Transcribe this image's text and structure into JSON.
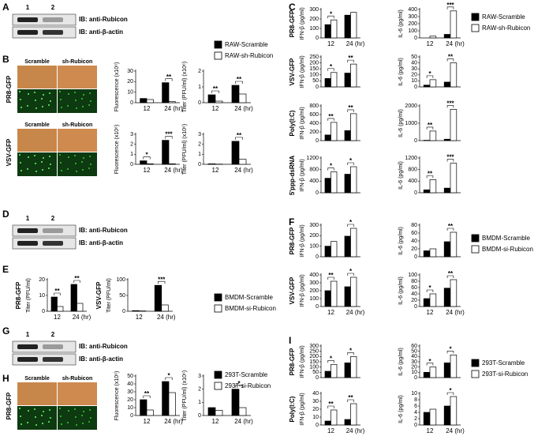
{
  "panel_labels": [
    "A",
    "B",
    "C",
    "D",
    "E",
    "F",
    "G",
    "H",
    "I"
  ],
  "blots": [
    {
      "lanes": [
        "1",
        "2"
      ],
      "rows": [
        "IB: anti-Rubicon",
        "IB: anti-β-actin"
      ]
    },
    {
      "lanes": [
        "1",
        "2"
      ],
      "rows": [
        "IB: anti-Rubicon",
        "IB: anti-β-actin"
      ]
    },
    {
      "lanes": [
        "1",
        "2"
      ],
      "rows": [
        "IB: anti-Rubicon",
        "IB: anti-β-actin"
      ]
    }
  ],
  "micrographs": [
    {
      "columns": [
        "Scramble",
        "sh-Rubicon"
      ],
      "row": "PR8-GFP"
    },
    {
      "columns": [
        "Scramble",
        "sh-Rubicon"
      ],
      "row": "VSV-GFP"
    },
    {
      "columns": [
        "Scramble",
        "sh-Rubicon"
      ],
      "row": "PR8-GFP"
    }
  ],
  "chart_data": [
    {
      "type": "bar",
      "series": [
        {
          "name": "RAW-Scramble",
          "color": "#000000"
        },
        {
          "name": "RAW-sh-Rubicon",
          "color": "#ffffff"
        }
      ],
      "plots": [
        {
          "ylabel": "Fluorescence (x10⁶)",
          "categories": [
            "12",
            "24 (hr)"
          ],
          "ylim": [
            0,
            30
          ],
          "yticks": [
            0,
            10,
            20,
            30
          ],
          "values": [
            [
              4,
              19
            ],
            [
              3,
              1
            ]
          ],
          "significance": [
            null,
            "**"
          ]
        },
        {
          "ylabel": "Titer (PFU/ml) (x10⁶)",
          "categories": [
            "12",
            "24 (hr)"
          ],
          "ylim": [
            0,
            2
          ],
          "yticks": [
            0,
            1,
            2
          ],
          "values": [
            [
              0.5,
              1.1
            ],
            [
              0.1,
              0.55
            ]
          ],
          "significance": [
            "**",
            "**"
          ]
        },
        {
          "ylabel": "Fluorescence (x10⁶)",
          "categories": [
            "12",
            "24 (hr)"
          ],
          "ylim": [
            0,
            3
          ],
          "yticks": [
            0,
            1,
            2,
            3
          ],
          "values": [
            [
              0.35,
              2.4
            ],
            [
              0.05,
              0.05
            ]
          ],
          "significance": [
            "*",
            "***"
          ]
        },
        {
          "ylabel": "Titer (PFU/ml) (x10⁶)",
          "categories": [
            "12",
            "24 (hr)"
          ],
          "ylim": [
            0,
            3
          ],
          "yticks": [
            0,
            1,
            2,
            3
          ],
          "values": [
            [
              0.05,
              2.3
            ],
            [
              0.02,
              0.5
            ]
          ],
          "significance": [
            null,
            "**"
          ]
        }
      ]
    },
    {
      "type": "bar",
      "series": [
        {
          "name": "RAW-Scramble",
          "color": "#000000"
        },
        {
          "name": "RAW-sh-Rubicon",
          "color": "#ffffff"
        }
      ],
      "plots": [
        {
          "row_label": "PR8-GFP",
          "ylabel": "IFN-β (pg/ml)",
          "categories": [
            "12",
            "24 (hr)"
          ],
          "ylim": [
            0,
            300
          ],
          "yticks": [
            0,
            100,
            200,
            300
          ],
          "values": [
            [
              140,
              240
            ],
            [
              190,
              270
            ]
          ],
          "significance": [
            "*",
            null
          ]
        },
        {
          "ylabel": "IL-6 (pg/ml)",
          "categories": [
            "12",
            "24 (hr)"
          ],
          "ylim": [
            0,
            400
          ],
          "yticks": [
            0,
            100,
            200,
            300,
            400
          ],
          "values": [
            [
              0,
              50
            ],
            [
              25,
              380
            ]
          ],
          "significance": [
            null,
            "***"
          ]
        },
        {
          "row_label": "VSV-GFP",
          "ylabel": "IFN-β (pg/ml)",
          "categories": [
            null,
            null
          ],
          "ylim": [
            0,
            250
          ],
          "yticks": [
            0,
            50,
            100,
            150,
            200,
            250
          ],
          "values": [
            [
              70,
              115
            ],
            [
              120,
              190
            ]
          ],
          "significance": [
            "*",
            "**"
          ]
        },
        {
          "ylabel": "IL-6 (pg/ml)",
          "categories": [
            null,
            null
          ],
          "ylim": [
            0,
            50
          ],
          "yticks": [
            0,
            10,
            20,
            30,
            40,
            50
          ],
          "values": [
            [
              3,
              8
            ],
            [
              12,
              40
            ]
          ],
          "significance": [
            "*",
            "**"
          ]
        },
        {
          "row_label": "Poly(I:C)",
          "ylabel": "IFN-β (pg/ml)",
          "categories": [
            null,
            null
          ],
          "ylim": [
            0,
            800
          ],
          "yticks": [
            0,
            200,
            400,
            600,
            800
          ],
          "values": [
            [
              130,
              230
            ],
            [
              420,
              620
            ]
          ],
          "significance": [
            "**",
            "**"
          ]
        },
        {
          "ylabel": "IL-6 (pg/ml)",
          "categories": [
            null,
            null
          ],
          "ylim": [
            0,
            2000
          ],
          "yticks": [
            0,
            1000,
            2000
          ],
          "values": [
            [
              20,
              80
            ],
            [
              550,
              1800
            ]
          ],
          "significance": [
            "**",
            "***"
          ]
        },
        {
          "row_label": "5'ppp-dsRNA",
          "ylabel": "IFN-β (pg/ml)",
          "categories": [
            null,
            null
          ],
          "ylim": [
            0,
            1200
          ],
          "yticks": [
            0,
            400,
            800,
            1200
          ],
          "values": [
            [
              500,
              640
            ],
            [
              720,
              900
            ]
          ],
          "significance": [
            "*",
            "*"
          ]
        },
        {
          "ylabel": "IL-6 (pg/ml)",
          "categories": [
            null,
            null
          ],
          "ylim": [
            0,
            1200
          ],
          "yticks": [
            0,
            400,
            800,
            1200
          ],
          "values": [
            [
              100,
              160
            ],
            [
              450,
              1020
            ]
          ],
          "significance": [
            "**",
            "***"
          ]
        }
      ]
    },
    {
      "type": "bar",
      "series": [
        {
          "name": "BMDM-Scramble",
          "color": "#000000"
        },
        {
          "name": "BMDM-si-Rubicon",
          "color": "#ffffff"
        }
      ],
      "plots": [
        {
          "row_label": "PR8-GFP",
          "ylabel": "Titer (PFU/ml)",
          "categories": [
            "12",
            "24 (hr)"
          ],
          "ylim": [
            0,
            20
          ],
          "yticks": [
            0,
            10,
            20
          ],
          "values": [
            [
              9,
              17
            ],
            [
              3,
              5
            ]
          ],
          "significance": [
            "**",
            "**"
          ]
        },
        {
          "row_label": "VSV-GFP",
          "ylabel": "Titer (PFU/ml)",
          "categories": [
            "12",
            "24 (hr)"
          ],
          "ylim": [
            0,
            100
          ],
          "yticks": [
            0,
            50,
            100
          ],
          "values": [
            [
              2,
              82
            ],
            [
              1,
              20
            ]
          ],
          "significance": [
            null,
            "***"
          ]
        }
      ]
    },
    {
      "type": "bar",
      "series": [
        {
          "name": "BMDM-Scramble",
          "color": "#000000"
        },
        {
          "name": "BMDM-si-Rubicon",
          "color": "#ffffff"
        }
      ],
      "plots": [
        {
          "row_label": "PR8-GFP",
          "ylabel": "IFN-β (pg/ml)",
          "categories": [
            null,
            null
          ],
          "ylim": [
            0,
            300
          ],
          "yticks": [
            0,
            100,
            200,
            300
          ],
          "values": [
            [
              100,
              195
            ],
            [
              145,
              270
            ]
          ],
          "significance": [
            null,
            "*"
          ]
        },
        {
          "ylabel": "IL-6 (pg/ml)",
          "categories": [
            null,
            null
          ],
          "ylim": [
            0,
            80
          ],
          "yticks": [
            0,
            20,
            40,
            60,
            80
          ],
          "values": [
            [
              15,
              38
            ],
            [
              20,
              62
            ]
          ],
          "significance": [
            null,
            "**"
          ]
        },
        {
          "row_label": "VSV-GFP",
          "ylabel": "IFN-β (pg/ml)",
          "categories": [
            "12",
            "24 (hr)"
          ],
          "ylim": [
            0,
            400
          ],
          "yticks": [
            0,
            100,
            200,
            300,
            400
          ],
          "values": [
            [
              200,
              250
            ],
            [
              320,
              370
            ]
          ],
          "significance": [
            "**",
            "*"
          ]
        },
        {
          "ylabel": "IL-6 (pg/ml)",
          "categories": [
            "12",
            "24 (hr)"
          ],
          "ylim": [
            0,
            100
          ],
          "yticks": [
            0,
            20,
            40,
            60,
            80,
            100
          ],
          "values": [
            [
              25,
              58
            ],
            [
              40,
              85
            ]
          ],
          "significance": [
            "*",
            "**"
          ]
        }
      ]
    },
    {
      "type": "bar",
      "series": [
        {
          "name": "293T-Scramble",
          "color": "#000000"
        },
        {
          "name": "293T-si-Rubicon",
          "color": "#ffffff"
        }
      ],
      "plots": [
        {
          "ylabel": "Fluorescence (x10⁶)",
          "categories": [
            "12",
            "24 (hr)"
          ],
          "ylim": [
            0,
            50
          ],
          "yticks": [
            0,
            10,
            20,
            30,
            40,
            50
          ],
          "values": [
            [
              20,
              43
            ],
            [
              7,
              29
            ]
          ],
          "significance": [
            "**",
            "*"
          ]
        },
        {
          "ylabel": "Titer (PFU/ml) (x10⁶)",
          "categories": [
            "12",
            "24 (hr)"
          ],
          "ylim": [
            0,
            3
          ],
          "yticks": [
            0,
            1,
            2,
            3
          ],
          "values": [
            [
              0.6,
              2
            ],
            [
              0.4,
              0.6
            ]
          ],
          "significance": [
            null,
            "*"
          ]
        }
      ]
    },
    {
      "type": "bar",
      "series": [
        {
          "name": "293T-Scramble",
          "color": "#000000"
        },
        {
          "name": "293T-si-Rubicon",
          "color": "#ffffff"
        }
      ],
      "plots": [
        {
          "row_label": "PR8-GFP",
          "ylabel": "IFN-β (pg/ml)",
          "categories": [
            null,
            null
          ],
          "ylim": [
            0,
            300
          ],
          "yticks": [
            0,
            50,
            100,
            150,
            200,
            250,
            300
          ],
          "values": [
            [
              60,
              140
            ],
            [
              125,
              200
            ]
          ],
          "significance": [
            "*",
            "*"
          ]
        },
        {
          "ylabel": "IL-6 (pg/ml)",
          "categories": [
            null,
            null
          ],
          "ylim": [
            0,
            60
          ],
          "yticks": [
            0,
            10,
            20,
            30,
            40,
            50,
            60
          ],
          "values": [
            [
              10,
              28
            ],
            [
              20,
              43
            ]
          ],
          "significance": [
            "*",
            "*"
          ]
        },
        {
          "row_label": "Poly(I:C)",
          "ylabel": "IFN-β (pg/ml)",
          "categories": [
            "12",
            "24 (hr)"
          ],
          "ylim": [
            0,
            40
          ],
          "yticks": [
            0,
            10,
            20,
            30,
            40
          ],
          "values": [
            [
              5,
              7
            ],
            [
              19,
              27
            ]
          ],
          "significance": [
            "**",
            "**"
          ]
        },
        {
          "ylabel": "IL-6 (pg/ml)",
          "categories": [
            "12",
            "24 (hr)"
          ],
          "ylim": [
            0,
            10
          ],
          "yticks": [
            0,
            2,
            4,
            6,
            8,
            10
          ],
          "values": [
            [
              4,
              6
            ],
            [
              5,
              9
            ]
          ],
          "significance": [
            null,
            "*"
          ]
        }
      ]
    }
  ]
}
